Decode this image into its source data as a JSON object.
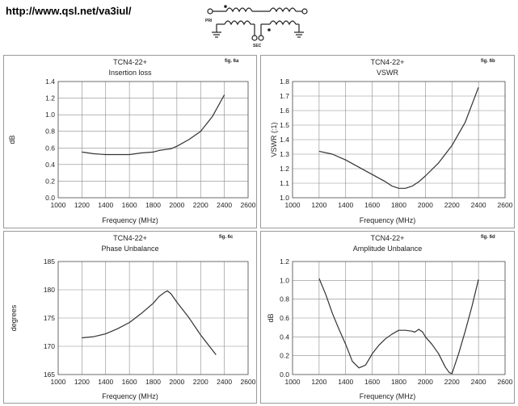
{
  "header": {
    "url": "http://www.qsl.net/va3iul/",
    "schematic_pri": "PRI",
    "schematic_sec": "SEC"
  },
  "chart_data": [
    {
      "type": "line",
      "title": "TCN4-22+",
      "subtitle": "Insertion loss",
      "fig": "fig. 6a",
      "xlabel": "Frequency (MHz)",
      "ylabel": "dB",
      "xlim": [
        1000,
        2600
      ],
      "ylim": [
        0.0,
        1.4
      ],
      "xticks": [
        1000,
        1200,
        1400,
        1600,
        1800,
        2000,
        2200,
        2400,
        2600
      ],
      "yticks": [
        "0.0",
        "0.2",
        "0.4",
        "0.6",
        "0.8",
        "1.0",
        "1.2",
        "1.4"
      ],
      "grid": true,
      "x": [
        1200,
        1300,
        1400,
        1500,
        1600,
        1700,
        1800,
        1850,
        1900,
        1950,
        2000,
        2100,
        2200,
        2300,
        2400
      ],
      "y": [
        0.55,
        0.53,
        0.52,
        0.52,
        0.52,
        0.54,
        0.55,
        0.57,
        0.58,
        0.59,
        0.62,
        0.7,
        0.8,
        0.98,
        1.24
      ]
    },
    {
      "type": "line",
      "title": "TCN4-22+",
      "subtitle": "VSWR",
      "fig": "fig. 6b",
      "xlabel": "Frequency (MHz)",
      "ylabel": "VSWR (:1)",
      "xlim": [
        1000,
        2600
      ],
      "ylim": [
        1.0,
        1.8
      ],
      "xticks": [
        1000,
        1200,
        1400,
        1600,
        1800,
        2000,
        2200,
        2400,
        2600
      ],
      "yticks": [
        "1.0",
        "1.1",
        "1.2",
        "1.3",
        "1.4",
        "1.5",
        "1.6",
        "1.7",
        "1.8"
      ],
      "grid": true,
      "x": [
        1200,
        1300,
        1400,
        1500,
        1600,
        1700,
        1750,
        1800,
        1850,
        1900,
        1950,
        2000,
        2100,
        2200,
        2300,
        2400
      ],
      "y": [
        1.32,
        1.3,
        1.26,
        1.21,
        1.16,
        1.11,
        1.08,
        1.065,
        1.065,
        1.08,
        1.11,
        1.15,
        1.24,
        1.36,
        1.52,
        1.76
      ]
    },
    {
      "type": "line",
      "title": "TCN4-22+",
      "subtitle": "Phase Unbalance",
      "fig": "fig. 6c",
      "xlabel": "Frequency (MHz)",
      "ylabel": "degrees",
      "xlim": [
        1000,
        2600
      ],
      "ylim": [
        165,
        185
      ],
      "xticks": [
        1000,
        1200,
        1400,
        1600,
        1800,
        2000,
        2200,
        2400,
        2600
      ],
      "yticks": [
        "165",
        "170",
        "175",
        "180",
        "185"
      ],
      "grid": true,
      "x": [
        1200,
        1300,
        1400,
        1500,
        1600,
        1700,
        1800,
        1850,
        1900,
        1920,
        1950,
        2000,
        2100,
        2200,
        2330
      ],
      "y": [
        171.5,
        171.7,
        172.2,
        173.1,
        174.2,
        175.8,
        177.6,
        178.8,
        179.6,
        179.8,
        179.3,
        177.8,
        175.1,
        172.0,
        168.5
      ]
    },
    {
      "type": "line",
      "title": "TCN4-22+",
      "subtitle": "Amplitude Unbalance",
      "fig": "fig. 6d",
      "xlabel": "Frequency (MHz)",
      "ylabel": "dB",
      "xlim": [
        1000,
        2600
      ],
      "ylim": [
        0.0,
        1.2
      ],
      "xticks": [
        1000,
        1200,
        1400,
        1600,
        1800,
        2000,
        2200,
        2400,
        2600
      ],
      "yticks": [
        "0.0",
        "0.2",
        "0.4",
        "0.6",
        "0.8",
        "1.0",
        "1.2"
      ],
      "grid": true,
      "x": [
        1200,
        1250,
        1300,
        1350,
        1400,
        1450,
        1500,
        1550,
        1600,
        1650,
        1700,
        1750,
        1800,
        1850,
        1900,
        1920,
        1950,
        1980,
        2000,
        2050,
        2100,
        2150,
        2180,
        2200,
        2250,
        2300,
        2350,
        2400
      ],
      "y": [
        1.02,
        0.85,
        0.65,
        0.48,
        0.32,
        0.14,
        0.07,
        0.1,
        0.22,
        0.31,
        0.38,
        0.43,
        0.47,
        0.47,
        0.46,
        0.45,
        0.48,
        0.45,
        0.4,
        0.32,
        0.22,
        0.08,
        0.02,
        0.01,
        0.22,
        0.46,
        0.72,
        1.01
      ]
    }
  ]
}
